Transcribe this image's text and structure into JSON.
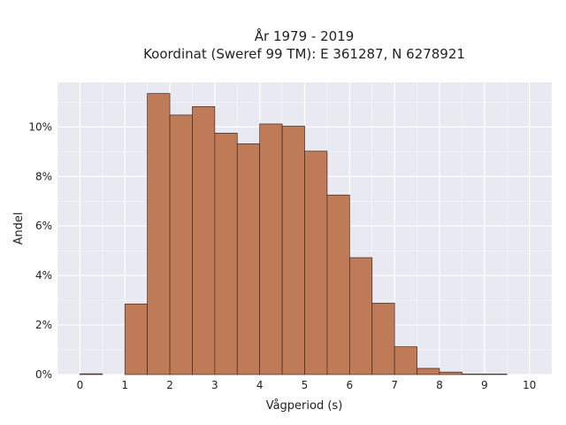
{
  "chart_data": {
    "type": "bar",
    "title": "År 1979 - 2019",
    "subtitle": "Koordinat (Sweref 99 TM): E 361287, N 6278921",
    "xlabel": "Vågperiod (s)",
    "ylabel": "Andel",
    "bin_width": 0.5,
    "bins": [
      {
        "x0": 0.0,
        "value": 0.0003
      },
      {
        "x0": 0.5,
        "value": 0.0
      },
      {
        "x0": 1.0,
        "value": 0.0285
      },
      {
        "x0": 1.5,
        "value": 0.1135
      },
      {
        "x0": 2.0,
        "value": 0.1048
      },
      {
        "x0": 2.5,
        "value": 0.1082
      },
      {
        "x0": 3.0,
        "value": 0.0975
      },
      {
        "x0": 3.5,
        "value": 0.0932
      },
      {
        "x0": 4.0,
        "value": 0.1012
      },
      {
        "x0": 4.5,
        "value": 0.1003
      },
      {
        "x0": 5.0,
        "value": 0.0902
      },
      {
        "x0": 5.5,
        "value": 0.0725
      },
      {
        "x0": 6.0,
        "value": 0.0472
      },
      {
        "x0": 6.5,
        "value": 0.0288
      },
      {
        "x0": 7.0,
        "value": 0.0112
      },
      {
        "x0": 7.5,
        "value": 0.0025
      },
      {
        "x0": 8.0,
        "value": 0.001
      },
      {
        "x0": 8.5,
        "value": 0.0002
      },
      {
        "x0": 9.0,
        "value": 0.0002
      }
    ],
    "xlim": [
      -0.5,
      10.5
    ],
    "ylim": [
      0,
      0.118
    ],
    "x_ticks": [
      0,
      1,
      2,
      3,
      4,
      5,
      6,
      7,
      8,
      9,
      10
    ],
    "x_tick_labels": [
      "0",
      "1",
      "2",
      "3",
      "4",
      "5",
      "6",
      "7",
      "8",
      "9",
      "10"
    ],
    "y_ticks": [
      0,
      0.02,
      0.04,
      0.06,
      0.08,
      0.1
    ],
    "y_tick_labels": [
      "0%",
      "2%",
      "4%",
      "6%",
      "8%",
      "10%"
    ],
    "grid": true,
    "colors": {
      "plot_background": "#e9e9f1",
      "grid": "#ffffff",
      "bar_fill": "#bf7b57",
      "bar_edge": "#3d2a22"
    }
  }
}
